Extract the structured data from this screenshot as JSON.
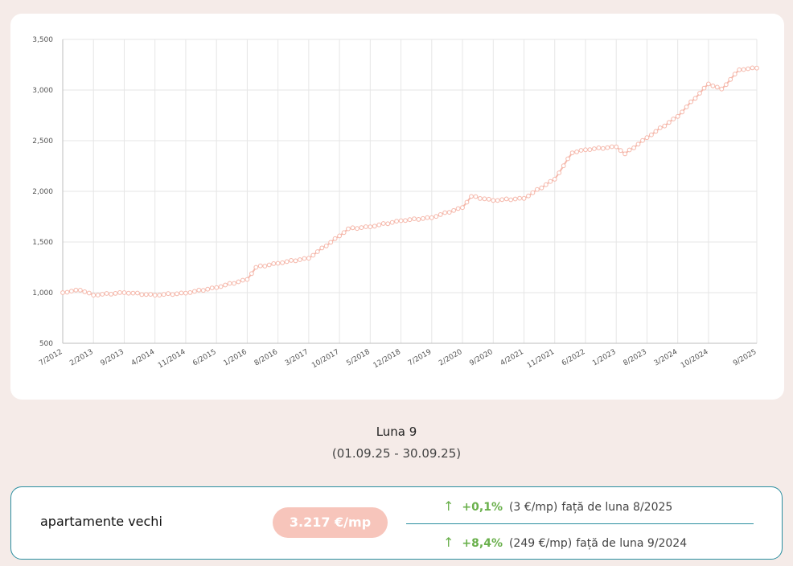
{
  "chart_data": {
    "type": "line",
    "x_ticks": [
      "7/2012",
      "2/2013",
      "9/2013",
      "4/2014",
      "11/2014",
      "6/2015",
      "1/2016",
      "8/2016",
      "3/2017",
      "10/2017",
      "5/2018",
      "12/2018",
      "7/2019",
      "2/2020",
      "9/2020",
      "4/2021",
      "11/2021",
      "6/2022",
      "1/2023",
      "8/2023",
      "3/2024",
      "10/2024",
      "9/2025"
    ],
    "y_ticks": [
      "3,500",
      "3,000",
      "2,500",
      "2,000",
      "1,500",
      "1,000",
      "500"
    ],
    "ylim": [
      500,
      3500
    ],
    "grid": true,
    "anchors": [
      {
        "x": "7/2012",
        "y": 1000
      },
      {
        "x": "11/2012",
        "y": 1025
      },
      {
        "x": "2/2013",
        "y": 975
      },
      {
        "x": "9/2013",
        "y": 1000
      },
      {
        "x": "4/2014",
        "y": 975
      },
      {
        "x": "11/2014",
        "y": 995
      },
      {
        "x": "6/2015",
        "y": 1050
      },
      {
        "x": "1/2016",
        "y": 1130
      },
      {
        "x": "3/2016",
        "y": 1250
      },
      {
        "x": "8/2016",
        "y": 1290
      },
      {
        "x": "3/2017",
        "y": 1340
      },
      {
        "x": "10/2017",
        "y": 1560
      },
      {
        "x": "12/2017",
        "y": 1630
      },
      {
        "x": "5/2018",
        "y": 1650
      },
      {
        "x": "12/2018",
        "y": 1710
      },
      {
        "x": "7/2019",
        "y": 1740
      },
      {
        "x": "2/2020",
        "y": 1840
      },
      {
        "x": "4/2020",
        "y": 1950
      },
      {
        "x": "9/2020",
        "y": 1910
      },
      {
        "x": "4/2021",
        "y": 1930
      },
      {
        "x": "11/2021",
        "y": 2120
      },
      {
        "x": "3/2022",
        "y": 2380
      },
      {
        "x": "6/2022",
        "y": 2410
      },
      {
        "x": "1/2023",
        "y": 2440
      },
      {
        "x": "3/2023",
        "y": 2370
      },
      {
        "x": "8/2023",
        "y": 2530
      },
      {
        "x": "3/2024",
        "y": 2740
      },
      {
        "x": "10/2024",
        "y": 3060
      },
      {
        "x": "1/2025",
        "y": 3010
      },
      {
        "x": "5/2025",
        "y": 3200
      },
      {
        "x": "9/2025",
        "y": 3217
      }
    ],
    "line_color": "#f5b8ab"
  },
  "period": {
    "title": "Luna 9",
    "range": "(01.09.25 - 30.09.25)"
  },
  "stats": {
    "label": "apartamente vechi",
    "price": "3.217 €/mp",
    "arrow": "↑",
    "rows": [
      {
        "pct": "+0,1%",
        "abs": "(3 €/mp)",
        "text": "față de luna 8/2025"
      },
      {
        "pct": "+8,4%",
        "abs": "(249 €/mp)",
        "text": "față de luna 9/2024"
      }
    ],
    "accent_color": "#6ab04c",
    "border_color": "#2a8ea0",
    "pill_color": "#f7c5bb"
  }
}
